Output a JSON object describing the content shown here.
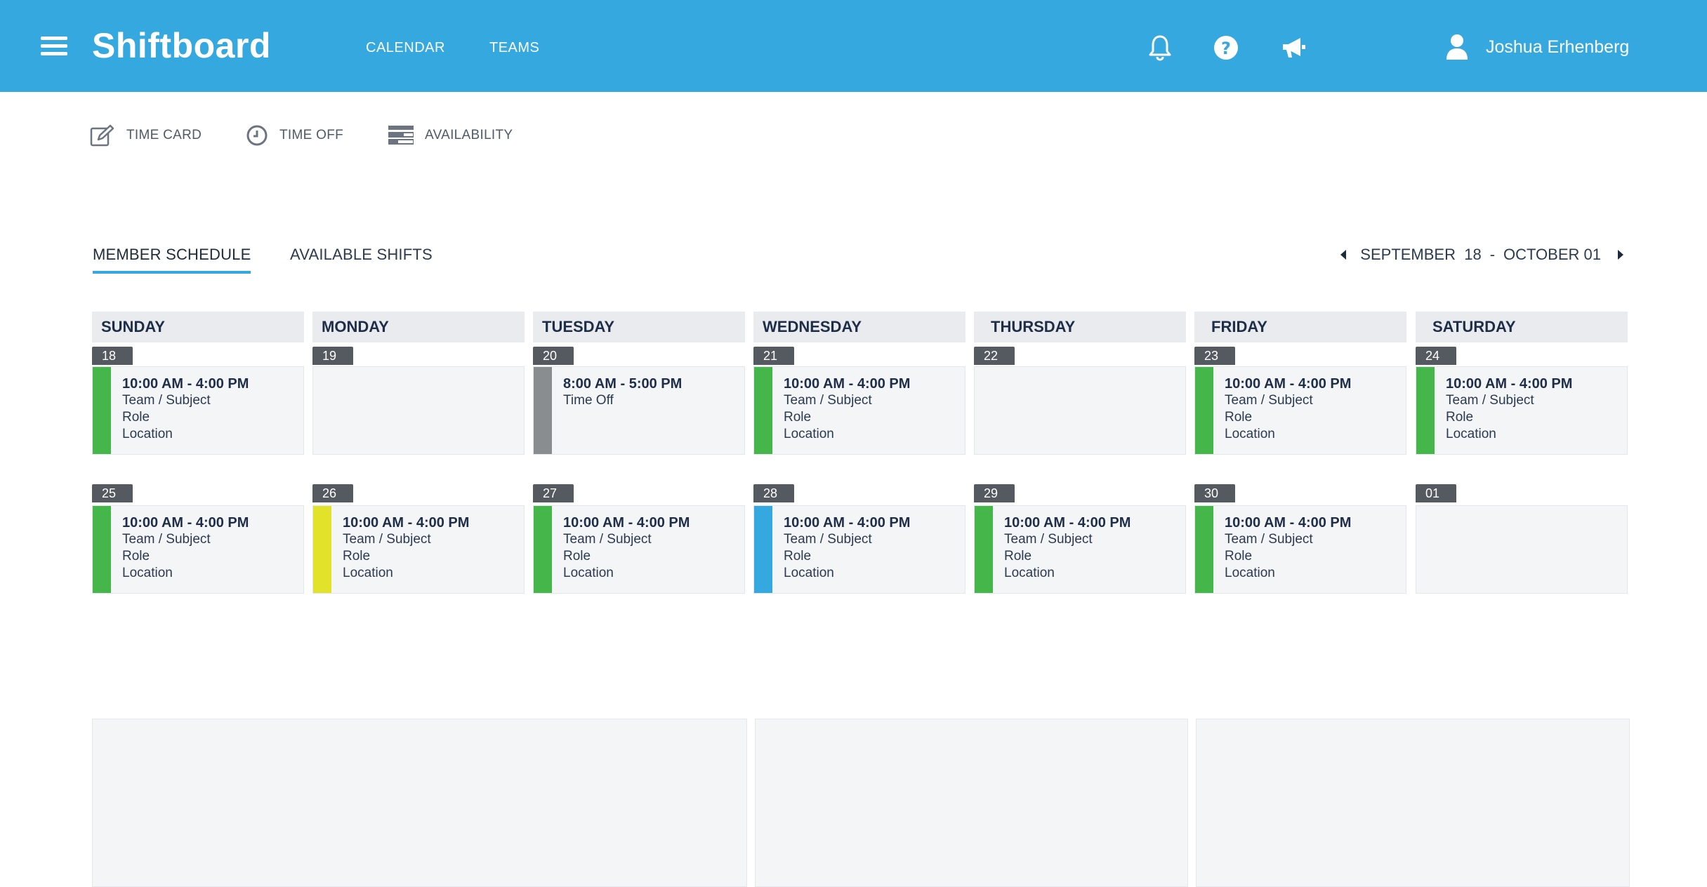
{
  "header": {
    "brand": "Shiftboard",
    "nav": {
      "calendar": "CALENDAR",
      "teams": "TEAMS"
    },
    "icons": [
      "hamburger-icon",
      "bell-icon",
      "help-icon",
      "megaphone-icon",
      "user-icon"
    ],
    "user_name": "Joshua Erhenberg",
    "bg_color": "#35a8df"
  },
  "toolbar": {
    "time_card": "TIME CARD",
    "time_off": "TIME OFF",
    "availability": "AVAILABILITY"
  },
  "tabs": {
    "member_schedule": "MEMBER SCHEDULE",
    "available_shifts": "AVAILABLE SHIFTS",
    "active": "member_schedule"
  },
  "date_range": {
    "start": "SEPTEMBER  18",
    "sep": "-",
    "end": "OCTOBER 01"
  },
  "days": [
    "SUNDAY",
    "MONDAY",
    "TUESDAY",
    "WEDNESDAY",
    "THURSDAY",
    "FRIDAY",
    "SATURDAY"
  ],
  "weeks": [
    [
      {
        "date": "18",
        "color": "#45b649",
        "lines": [
          "10:00 AM - 4:00 PM",
          "Team / Subject",
          "Role",
          "Location"
        ]
      },
      {
        "date": "19",
        "color": null,
        "lines": []
      },
      {
        "date": "20",
        "color": "#8a8d8f",
        "lines": [
          "8:00 AM - 5:00 PM",
          "Time Off"
        ]
      },
      {
        "date": "21",
        "color": "#45b649",
        "lines": [
          "10:00 AM - 4:00 PM",
          "Team / Subject",
          "Role",
          "Location"
        ]
      },
      {
        "date": "22",
        "color": null,
        "lines": []
      },
      {
        "date": "23",
        "color": "#45b649",
        "lines": [
          "10:00 AM - 4:00 PM",
          "Team / Subject",
          "Role",
          "Location"
        ]
      },
      {
        "date": "24",
        "color": "#45b649",
        "lines": [
          "10:00 AM - 4:00 PM",
          "Team / Subject",
          "Role",
          "Location"
        ]
      }
    ],
    [
      {
        "date": "25",
        "color": "#45b649",
        "lines": [
          "10:00 AM - 4:00 PM",
          "Team / Subject",
          "Role",
          "Location"
        ]
      },
      {
        "date": "26",
        "color": "#e3e22a",
        "lines": [
          "10:00 AM - 4:00 PM",
          "Team / Subject",
          "Role",
          "Location"
        ]
      },
      {
        "date": "27",
        "color": "#45b649",
        "lines": [
          "10:00 AM - 4:00 PM",
          "Team / Subject",
          "Role",
          "Location"
        ]
      },
      {
        "date": "28",
        "color": "#35a8df",
        "lines": [
          "10:00 AM - 4:00 PM",
          "Team / Subject",
          "Role",
          "Location"
        ]
      },
      {
        "date": "29",
        "color": "#45b649",
        "lines": [
          "10:00 AM - 4:00 PM",
          "Team / Subject",
          "Role",
          "Location"
        ]
      },
      {
        "date": "30",
        "color": "#45b649",
        "lines": [
          "10:00 AM - 4:00 PM",
          "Team / Subject",
          "Role",
          "Location"
        ]
      },
      {
        "date": "01",
        "color": null,
        "lines": []
      }
    ]
  ]
}
